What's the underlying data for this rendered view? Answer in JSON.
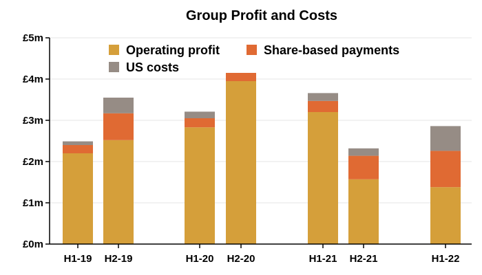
{
  "chart_data": {
    "type": "bar",
    "stacked": true,
    "title": "Group Profit and Costs",
    "xlabel": "",
    "ylabel": "",
    "ylim": [
      0,
      5
    ],
    "y_ticks": [
      "£0m",
      "£1m",
      "£2m",
      "£3m",
      "£4m",
      "£5m"
    ],
    "categories": [
      "H1-19",
      "H2-19",
      "H1-20",
      "H2-20",
      "H1-21",
      "H2-21",
      "H1-22"
    ],
    "series": [
      {
        "name": "Operating profit",
        "color": "#d59f3a",
        "values": [
          2.2,
          2.52,
          2.83,
          3.95,
          3.2,
          1.57,
          1.38
        ]
      },
      {
        "name": "Share-based payments",
        "color": "#e06a33",
        "values": [
          0.2,
          0.65,
          0.22,
          0.2,
          0.27,
          0.57,
          0.88
        ]
      },
      {
        "name": "US costs",
        "color": "#968c85",
        "values": [
          0.09,
          0.38,
          0.16,
          0.0,
          0.19,
          0.18,
          0.6
        ]
      }
    ],
    "grid": true,
    "legend": "top"
  }
}
